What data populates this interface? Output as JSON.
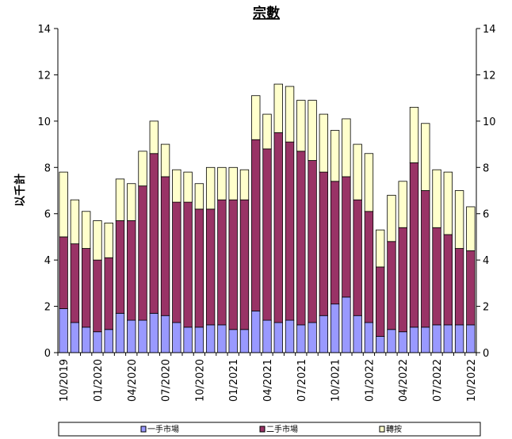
{
  "chart_data": {
    "type": "bar",
    "stacked": true,
    "title": "宗數",
    "ylabel": "以千計",
    "ylim": [
      0,
      14
    ],
    "yticks": [
      0,
      2,
      4,
      6,
      8,
      10,
      12,
      14
    ],
    "y2ticks": [
      0,
      2,
      4,
      6,
      8,
      10,
      12,
      14
    ],
    "categories": [
      "10/2019",
      "11/2019",
      "12/2019",
      "01/2020",
      "02/2020",
      "03/2020",
      "04/2020",
      "05/2020",
      "06/2020",
      "07/2020",
      "08/2020",
      "09/2020",
      "10/2020",
      "11/2020",
      "12/2020",
      "01/2021",
      "02/2021",
      "03/2021",
      "04/2021",
      "05/2021",
      "06/2021",
      "07/2021",
      "08/2021",
      "09/2021",
      "10/2021",
      "11/2021",
      "12/2021",
      "01/2022",
      "02/2022",
      "03/2022",
      "04/2022",
      "05/2022",
      "06/2022",
      "07/2022",
      "08/2022",
      "09/2022",
      "10/2022"
    ],
    "xtick_labels": [
      "10/2019",
      "01/2020",
      "04/2020",
      "07/2020",
      "10/2020",
      "01/2021",
      "04/2021",
      "07/2021",
      "10/2021",
      "01/2022",
      "04/2022",
      "07/2022",
      "10/2022"
    ],
    "series": [
      {
        "name": "一手市場",
        "color": "#9999FF",
        "values": [
          1.9,
          1.3,
          1.1,
          0.9,
          1.0,
          1.7,
          1.4,
          1.4,
          1.7,
          1.6,
          1.3,
          1.1,
          1.1,
          1.2,
          1.2,
          1.0,
          1.0,
          1.8,
          1.4,
          1.3,
          1.4,
          1.2,
          1.3,
          1.6,
          2.1,
          2.4,
          1.6,
          1.3,
          0.7,
          1.0,
          0.9,
          1.1,
          1.1,
          1.2,
          1.2,
          1.2,
          1.2
        ]
      },
      {
        "name": "二手市場",
        "color": "#993366",
        "values": [
          3.1,
          3.4,
          3.4,
          3.1,
          3.1,
          4.0,
          4.3,
          5.8,
          6.9,
          6.0,
          5.2,
          5.4,
          5.1,
          5.0,
          5.4,
          5.6,
          5.6,
          7.4,
          7.4,
          8.2,
          7.7,
          7.5,
          7.0,
          6.2,
          5.3,
          5.2,
          5.0,
          4.8,
          3.0,
          3.8,
          4.5,
          7.1,
          5.9,
          4.2,
          3.9,
          3.3,
          3.2
        ]
      },
      {
        "name": "轉按",
        "color": "#FFFFCC",
        "values": [
          2.8,
          1.9,
          1.6,
          1.7,
          1.5,
          1.8,
          1.6,
          1.5,
          1.4,
          1.4,
          1.4,
          1.3,
          1.1,
          1.8,
          1.4,
          1.4,
          1.3,
          1.9,
          1.5,
          2.1,
          2.4,
          2.2,
          2.6,
          2.5,
          2.2,
          2.5,
          2.4,
          2.5,
          1.6,
          2.0,
          2.0,
          2.4,
          2.9,
          2.5,
          2.7,
          2.5,
          1.9
        ]
      }
    ],
    "legend": "bottom",
    "grid": false
  }
}
